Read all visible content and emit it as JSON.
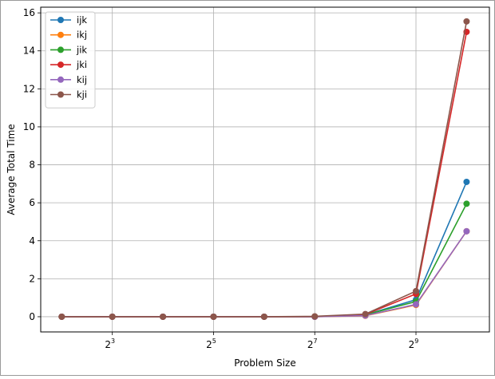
{
  "chart_data": {
    "type": "line",
    "title": "",
    "xlabel": "Problem Size",
    "ylabel": "Average Total Time",
    "x_scale": "log2",
    "x": [
      4,
      8,
      16,
      32,
      64,
      128,
      256,
      512,
      1024
    ],
    "xlim": [
      3,
      1400
    ],
    "ylim": [
      -0.8,
      16.3
    ],
    "x_ticks": [
      {
        "value": 8,
        "base": "2",
        "exp": "3"
      },
      {
        "value": 32,
        "base": "2",
        "exp": "5"
      },
      {
        "value": 128,
        "base": "2",
        "exp": "7"
      },
      {
        "value": 512,
        "base": "2",
        "exp": "9"
      }
    ],
    "y_ticks": [
      0,
      2,
      4,
      6,
      8,
      10,
      12,
      14,
      16
    ],
    "grid": true,
    "legend_position": "top-left",
    "series": [
      {
        "name": "ijk",
        "color": "#1f77b4",
        "values": [
          0,
          0,
          0,
          0,
          0,
          0,
          0.1,
          0.9,
          7.1
        ]
      },
      {
        "name": "ikj",
        "color": "#ff7f0e",
        "values": [
          0,
          0,
          0,
          0,
          0,
          0,
          0.05,
          0.62,
          4.5
        ]
      },
      {
        "name": "jik",
        "color": "#2ca02c",
        "values": [
          0,
          0,
          0,
          0,
          0,
          0,
          0.1,
          0.8,
          5.95
        ]
      },
      {
        "name": "jki",
        "color": "#d62728",
        "values": [
          0,
          0,
          0,
          0,
          0,
          0,
          0.12,
          1.2,
          15.0
        ]
      },
      {
        "name": "kij",
        "color": "#9467bd",
        "values": [
          0,
          0,
          0,
          0,
          0,
          0,
          0.06,
          0.65,
          4.5
        ]
      },
      {
        "name": "kji",
        "color": "#8c564b",
        "values": [
          0,
          0,
          0,
          0,
          0,
          0.02,
          0.14,
          1.35,
          15.55
        ]
      }
    ]
  }
}
